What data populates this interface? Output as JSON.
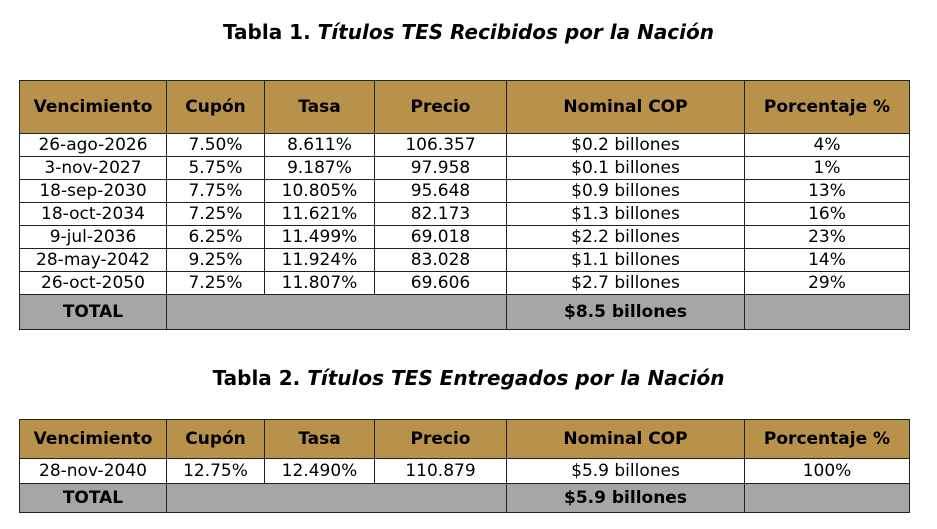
{
  "table1": {
    "title_prefix": "Tabla 1.",
    "title_italic": "Títulos TES Recibidos por la Nación",
    "headers": [
      "Vencimiento",
      "Cupón",
      "Tasa",
      "Precio",
      "Nominal COP",
      "Porcentaje %"
    ],
    "rows": [
      [
        "26-ago-2026",
        "7.50%",
        "8.611%",
        "106.357",
        "$0.2 billones",
        "4%"
      ],
      [
        "3-nov-2027",
        "5.75%",
        "9.187%",
        "97.958",
        "$0.1 billones",
        "1%"
      ],
      [
        "18-sep-2030",
        "7.75%",
        "10.805%",
        "95.648",
        "$0.9 billones",
        "13%"
      ],
      [
        "18-oct-2034",
        "7.25%",
        "11.621%",
        "82.173",
        "$1.3 billones",
        "16%"
      ],
      [
        "9-jul-2036",
        "6.25%",
        "11.499%",
        "69.018",
        "$2.2 billones",
        "23%"
      ],
      [
        "28-may-2042",
        "9.25%",
        "11.924%",
        "83.028",
        "$1.1 billones",
        "14%"
      ],
      [
        "26-oct-2050",
        "7.25%",
        "11.807%",
        "69.606",
        "$2.7 billones",
        "29%"
      ]
    ],
    "total_label": "TOTAL",
    "total_nominal": "$8.5 billones"
  },
  "table2": {
    "title_prefix": "Tabla 2.",
    "title_italic": "Títulos TES Entregados por la Nación",
    "headers": [
      "Vencimiento",
      "Cupón",
      "Tasa",
      "Precio",
      "Nominal COP",
      "Porcentaje %"
    ],
    "rows": [
      [
        "28-nov-2040",
        "12.75%",
        "12.490%",
        "110.879",
        "$5.9 billones",
        "100%"
      ]
    ],
    "total_label": "TOTAL",
    "total_nominal": "$5.9 billones"
  },
  "colors": {
    "header_bg": "#b8914a",
    "total_bg": "#a6a6a6"
  }
}
